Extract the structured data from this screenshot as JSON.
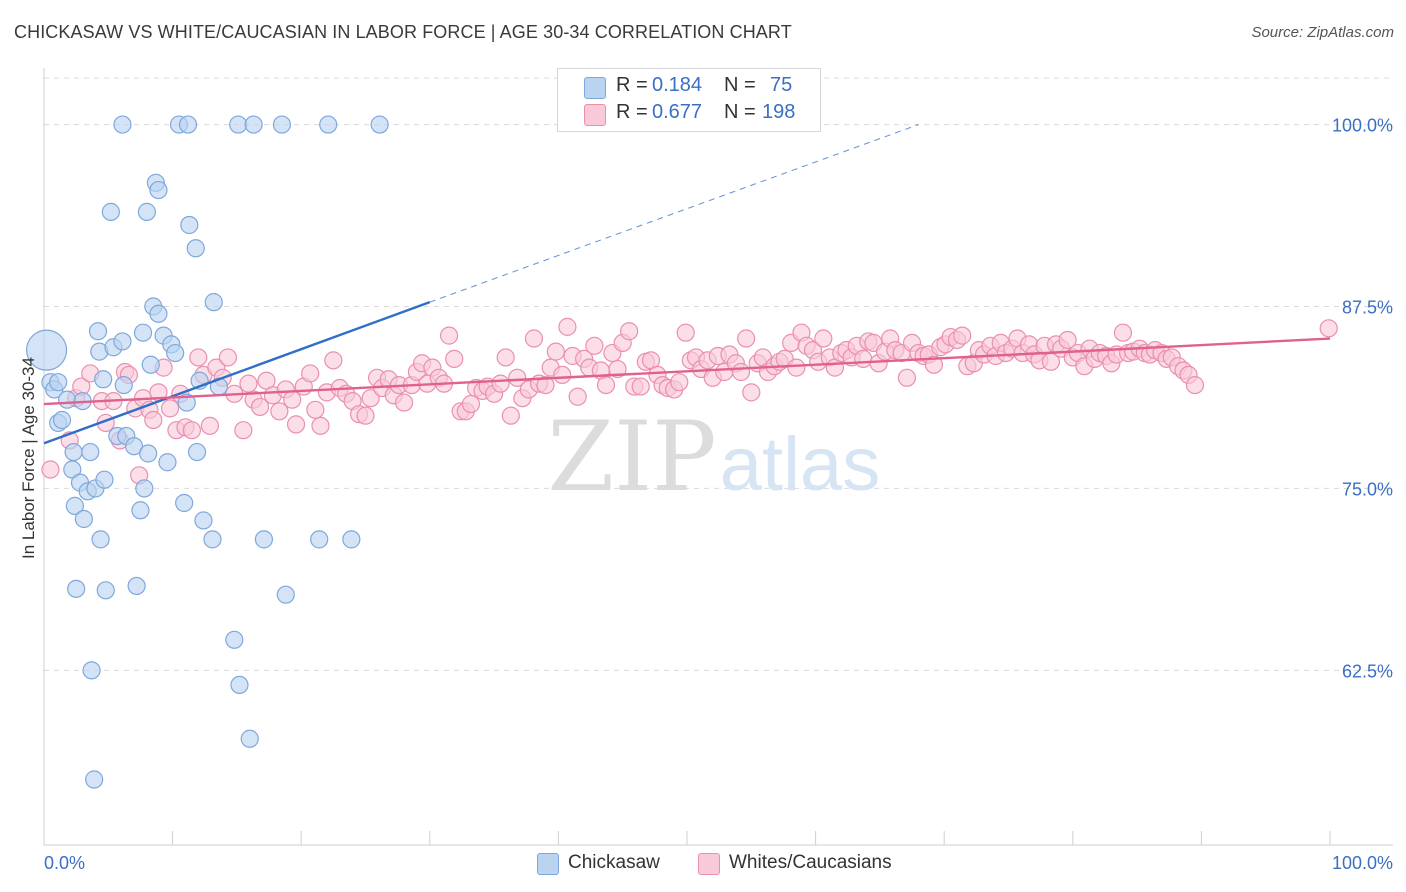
{
  "header": {
    "title": "CHICKASAW VS WHITE/CAUCASIAN IN LABOR FORCE | AGE 30-34 CORRELATION CHART",
    "source": "Source: ZipAtlas.com"
  },
  "legend": {
    "r_label": "R =",
    "n_label": "N =",
    "rows": [
      {
        "r": "0.184",
        "n": "75"
      },
      {
        "r": "0.677",
        "n": "198"
      }
    ]
  },
  "watermark": {
    "zip": "ZIP",
    "atlas": "atlas"
  },
  "colors": {
    "blue_fill": "#b9d3f0",
    "blue_stroke": "#7ea8dc",
    "blue_line": "#2f6ec9",
    "pink_fill": "#f8c9d8",
    "pink_stroke": "#ea8fb0",
    "pink_line": "#e0608e",
    "axis_label": "#3a6fc4",
    "grid": "#d9d9d9"
  },
  "chart_data": {
    "type": "scatter",
    "xlabel": "",
    "ylabel": "In Labor Force | Age 30-34",
    "xlim": [
      0,
      100
    ],
    "ylim": [
      50.5,
      103.2
    ],
    "x_tick_labels": [
      "0.0%",
      "100.0%"
    ],
    "y_ticks": [
      62.5,
      75.0,
      87.5,
      100.0
    ],
    "y_tick_labels": [
      "62.5%",
      "75.0%",
      "87.5%",
      "100.0%"
    ],
    "grid": "horizontal dashed",
    "legend_position": "top-center",
    "series": [
      {
        "name": "Chickasaw",
        "r": 0.184,
        "n": 75,
        "trend": {
          "x0": 0,
          "y0": 78.1,
          "x1": 30,
          "y1": 87.8,
          "dashed_extension_to": [
            68,
            100
          ]
        },
        "points": [
          [
            0.2,
            84.5,
            "L"
          ],
          [
            0.5,
            82.3
          ],
          [
            0.8,
            81.8
          ],
          [
            1.1,
            82.3
          ],
          [
            1.1,
            79.5
          ],
          [
            1.4,
            79.7
          ],
          [
            1.8,
            81.1
          ],
          [
            2.2,
            76.3
          ],
          [
            2.3,
            77.5
          ],
          [
            2.4,
            73.8
          ],
          [
            2.5,
            68.1
          ],
          [
            2.8,
            75.4
          ],
          [
            3.0,
            81.0
          ],
          [
            3.1,
            72.9
          ],
          [
            3.4,
            74.8
          ],
          [
            3.6,
            77.5
          ],
          [
            3.7,
            62.5
          ],
          [
            3.9,
            55.0
          ],
          [
            4.0,
            75.0
          ],
          [
            4.2,
            85.8
          ],
          [
            4.3,
            84.4
          ],
          [
            4.4,
            71.5
          ],
          [
            4.6,
            82.5
          ],
          [
            4.7,
            75.6
          ],
          [
            4.8,
            68.0
          ],
          [
            5.2,
            94.0
          ],
          [
            5.4,
            84.7
          ],
          [
            5.7,
            78.6
          ],
          [
            6.1,
            100.0
          ],
          [
            6.1,
            85.1
          ],
          [
            6.2,
            82.1
          ],
          [
            6.4,
            78.6
          ],
          [
            7.0,
            77.9
          ],
          [
            7.2,
            68.3
          ],
          [
            7.5,
            73.5
          ],
          [
            7.7,
            85.7
          ],
          [
            7.8,
            75.0
          ],
          [
            8.0,
            94.0
          ],
          [
            8.1,
            77.4
          ],
          [
            8.3,
            83.5
          ],
          [
            8.5,
            87.5
          ],
          [
            8.7,
            96.0
          ],
          [
            8.9,
            87.0
          ],
          [
            8.9,
            95.5
          ],
          [
            9.3,
            85.5
          ],
          [
            9.6,
            76.8
          ],
          [
            9.9,
            84.9
          ],
          [
            10.2,
            84.3
          ],
          [
            10.5,
            100.0
          ],
          [
            10.9,
            74.0
          ],
          [
            11.1,
            80.9
          ],
          [
            11.2,
            100.0
          ],
          [
            11.3,
            93.1
          ],
          [
            11.8,
            91.5
          ],
          [
            11.9,
            77.5
          ],
          [
            12.1,
            82.4
          ],
          [
            12.4,
            72.8
          ],
          [
            13.1,
            71.5
          ],
          [
            13.2,
            87.8
          ],
          [
            13.6,
            82.0
          ],
          [
            14.8,
            64.6
          ],
          [
            15.1,
            100.0
          ],
          [
            15.2,
            61.5
          ],
          [
            16.0,
            57.8
          ],
          [
            16.3,
            100.0
          ],
          [
            17.1,
            71.5
          ],
          [
            18.5,
            100.0
          ],
          [
            18.8,
            67.7
          ],
          [
            21.4,
            71.5
          ],
          [
            22.1,
            100.0
          ],
          [
            23.9,
            71.5
          ],
          [
            26.1,
            100.0
          ]
        ]
      },
      {
        "name": "Whites/Caucasians",
        "r": 0.677,
        "n": 198,
        "trend": {
          "x0": 0,
          "y0": 80.8,
          "x1": 100,
          "y1": 85.3
        },
        "points": [
          [
            0.5,
            76.3
          ],
          [
            2.0,
            78.3
          ],
          [
            2.5,
            81.2
          ],
          [
            2.9,
            82.0
          ],
          [
            3.6,
            82.9
          ],
          [
            4.5,
            81.0
          ],
          [
            4.8,
            79.5
          ],
          [
            5.4,
            81.0
          ],
          [
            5.9,
            78.3
          ],
          [
            6.3,
            83.0
          ],
          [
            6.6,
            82.8
          ],
          [
            7.1,
            80.5
          ],
          [
            7.4,
            75.9
          ],
          [
            7.7,
            81.2
          ],
          [
            8.2,
            80.4
          ],
          [
            8.5,
            79.7
          ],
          [
            8.9,
            81.6
          ],
          [
            9.3,
            83.3
          ],
          [
            9.8,
            80.5
          ],
          [
            10.3,
            79.0
          ],
          [
            10.6,
            81.5
          ],
          [
            11.0,
            79.2
          ],
          [
            11.5,
            79.0
          ],
          [
            12.0,
            84.0
          ],
          [
            12.4,
            82.8
          ],
          [
            12.9,
            79.3
          ],
          [
            13.4,
            83.3
          ],
          [
            13.9,
            82.6
          ],
          [
            14.3,
            84.0
          ],
          [
            14.8,
            81.5
          ],
          [
            15.5,
            79.0
          ],
          [
            15.9,
            82.2
          ],
          [
            16.3,
            81.1
          ],
          [
            16.8,
            80.6
          ],
          [
            17.3,
            82.4
          ],
          [
            17.8,
            81.4
          ],
          [
            18.3,
            80.3
          ],
          [
            18.8,
            81.8
          ],
          [
            19.3,
            81.1
          ],
          [
            19.6,
            79.4
          ],
          [
            20.2,
            82.0
          ],
          [
            20.7,
            82.9
          ],
          [
            21.1,
            80.4
          ],
          [
            21.5,
            79.3
          ],
          [
            22.0,
            81.6
          ],
          [
            22.5,
            83.8
          ],
          [
            23.0,
            81.9
          ],
          [
            23.5,
            81.5
          ],
          [
            24.0,
            81.0
          ],
          [
            24.5,
            80.1
          ],
          [
            25.0,
            80.0
          ],
          [
            25.4,
            81.2
          ],
          [
            25.9,
            82.6
          ],
          [
            26.3,
            81.9
          ],
          [
            26.8,
            82.5
          ],
          [
            27.2,
            81.4
          ],
          [
            27.6,
            82.1
          ],
          [
            28.0,
            80.9
          ],
          [
            28.6,
            82.1
          ],
          [
            29.0,
            83.0
          ],
          [
            29.4,
            83.6
          ],
          [
            29.8,
            82.2
          ],
          [
            30.2,
            83.3
          ],
          [
            30.7,
            82.6
          ],
          [
            31.1,
            82.2
          ],
          [
            31.5,
            85.5
          ],
          [
            31.9,
            83.9
          ],
          [
            32.4,
            80.3
          ],
          [
            32.8,
            80.3
          ],
          [
            33.2,
            80.8
          ],
          [
            33.6,
            81.9
          ],
          [
            34.1,
            81.7
          ],
          [
            34.5,
            82.0
          ],
          [
            35.0,
            81.5
          ],
          [
            35.5,
            82.2
          ],
          [
            35.9,
            84.0
          ],
          [
            36.3,
            80.0
          ],
          [
            36.8,
            82.6
          ],
          [
            37.2,
            81.2
          ],
          [
            37.7,
            81.8
          ],
          [
            38.1,
            85.3
          ],
          [
            38.5,
            82.2
          ],
          [
            39.0,
            82.1
          ],
          [
            39.4,
            83.3
          ],
          [
            39.8,
            84.4
          ],
          [
            40.3,
            82.8
          ],
          [
            40.7,
            86.1
          ],
          [
            41.1,
            84.1
          ],
          [
            41.5,
            81.3
          ],
          [
            42.0,
            83.9
          ],
          [
            42.4,
            83.3
          ],
          [
            42.8,
            84.8
          ],
          [
            43.3,
            83.1
          ],
          [
            43.7,
            82.1
          ],
          [
            44.2,
            84.3
          ],
          [
            44.6,
            83.2
          ],
          [
            45.0,
            85.0
          ],
          [
            45.5,
            85.8
          ],
          [
            45.9,
            82.0
          ],
          [
            46.4,
            82.0
          ],
          [
            46.8,
            83.7
          ],
          [
            47.2,
            83.8
          ],
          [
            47.7,
            82.8
          ],
          [
            48.1,
            82.1
          ],
          [
            48.5,
            81.9
          ],
          [
            49.0,
            81.8
          ],
          [
            49.4,
            82.3
          ],
          [
            49.9,
            85.7
          ],
          [
            50.3,
            83.8
          ],
          [
            50.7,
            84.0
          ],
          [
            51.1,
            83.2
          ],
          [
            51.6,
            83.8
          ],
          [
            52.0,
            82.6
          ],
          [
            52.4,
            84.1
          ],
          [
            52.9,
            83.0
          ],
          [
            53.3,
            84.2
          ],
          [
            53.8,
            83.6
          ],
          [
            54.2,
            83.0
          ],
          [
            54.6,
            85.3
          ],
          [
            55.0,
            81.6
          ],
          [
            55.5,
            83.6
          ],
          [
            55.9,
            84.0
          ],
          [
            56.3,
            83.0
          ],
          [
            56.8,
            83.4
          ],
          [
            57.2,
            83.7
          ],
          [
            57.6,
            83.9
          ],
          [
            58.1,
            85.0
          ],
          [
            58.5,
            83.3
          ],
          [
            58.9,
            85.7
          ],
          [
            59.3,
            84.8
          ],
          [
            59.8,
            84.5
          ],
          [
            60.2,
            83.7
          ],
          [
            60.6,
            85.3
          ],
          [
            61.1,
            84.0
          ],
          [
            61.5,
            83.3
          ],
          [
            62.0,
            84.3
          ],
          [
            62.4,
            84.5
          ],
          [
            62.8,
            84.0
          ],
          [
            63.2,
            84.8
          ],
          [
            63.7,
            83.9
          ],
          [
            64.1,
            85.1
          ],
          [
            64.5,
            85.0
          ],
          [
            64.9,
            83.6
          ],
          [
            65.4,
            84.4
          ],
          [
            65.8,
            85.3
          ],
          [
            66.2,
            84.5
          ],
          [
            66.7,
            84.3
          ],
          [
            67.1,
            82.6
          ],
          [
            67.5,
            85.0
          ],
          [
            68.0,
            84.3
          ],
          [
            68.4,
            84.1
          ],
          [
            68.8,
            84.2
          ],
          [
            69.2,
            83.5
          ],
          [
            69.7,
            84.7
          ],
          [
            70.1,
            84.9
          ],
          [
            70.5,
            85.4
          ],
          [
            71.0,
            85.2
          ],
          [
            71.4,
            85.5
          ],
          [
            71.8,
            83.4
          ],
          [
            72.3,
            83.6
          ],
          [
            72.7,
            84.5
          ],
          [
            73.1,
            84.2
          ],
          [
            73.6,
            84.8
          ],
          [
            74.0,
            84.1
          ],
          [
            74.4,
            85.0
          ],
          [
            74.8,
            84.3
          ],
          [
            75.3,
            84.6
          ],
          [
            75.7,
            85.3
          ],
          [
            76.1,
            84.3
          ],
          [
            76.6,
            84.9
          ],
          [
            77.0,
            84.2
          ],
          [
            77.4,
            83.8
          ],
          [
            77.8,
            84.8
          ],
          [
            78.3,
            83.7
          ],
          [
            78.7,
            84.9
          ],
          [
            79.1,
            84.6
          ],
          [
            79.6,
            85.2
          ],
          [
            80.0,
            84.0
          ],
          [
            80.4,
            84.3
          ],
          [
            80.9,
            83.4
          ],
          [
            81.3,
            84.6
          ],
          [
            81.7,
            83.9
          ],
          [
            82.1,
            84.3
          ],
          [
            82.6,
            84.1
          ],
          [
            83.0,
            83.6
          ],
          [
            83.4,
            84.2
          ],
          [
            83.9,
            85.7
          ],
          [
            84.3,
            84.3
          ],
          [
            84.7,
            84.4
          ],
          [
            85.2,
            84.6
          ],
          [
            85.6,
            84.3
          ],
          [
            86.0,
            84.2
          ],
          [
            86.4,
            84.5
          ],
          [
            86.9,
            84.3
          ],
          [
            87.3,
            83.9
          ],
          [
            87.7,
            84.0
          ],
          [
            88.2,
            83.4
          ],
          [
            88.6,
            83.1
          ],
          [
            89.0,
            82.8
          ],
          [
            89.5,
            82.1
          ],
          [
            99.9,
            86.0
          ]
        ]
      }
    ]
  },
  "bottom_legend": [
    "Chickasaw",
    "Whites/Caucasians"
  ]
}
